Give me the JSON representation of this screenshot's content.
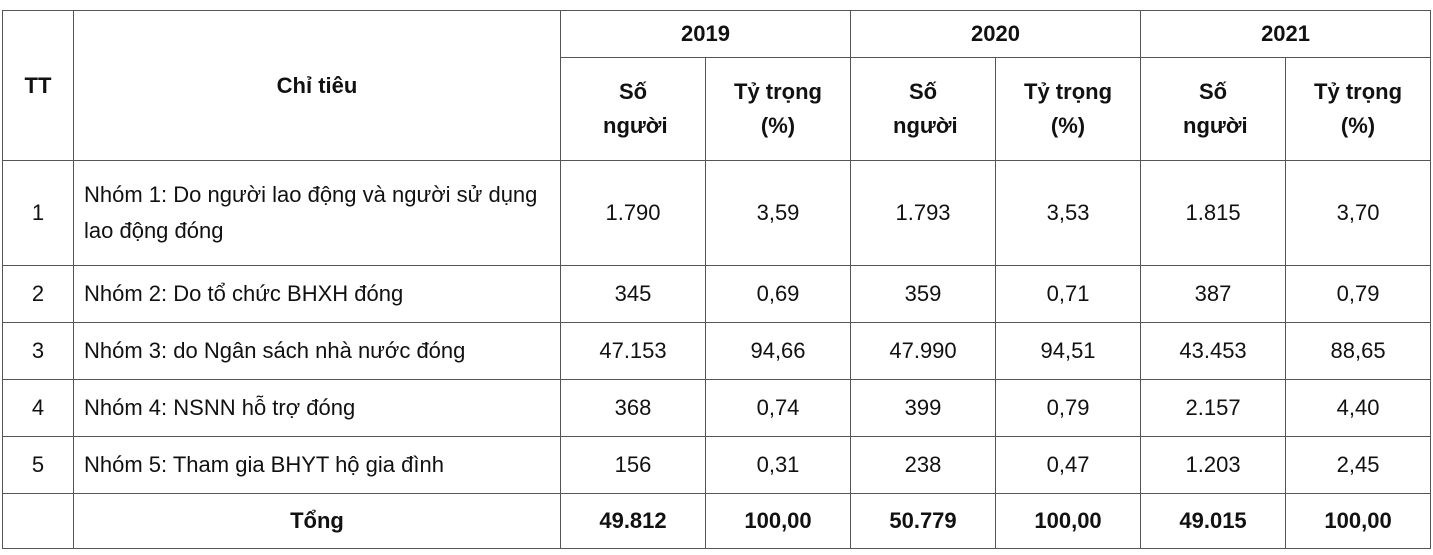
{
  "table": {
    "header": {
      "tt": "TT",
      "indicator": "Chỉ tiêu",
      "years": [
        {
          "year": "2019",
          "count": "Số người",
          "share": "Tỷ trọng (%)"
        },
        {
          "year": "2020",
          "count": "Số người",
          "share": "Tỷ trọng (%)"
        },
        {
          "year": "2021",
          "count": "Số người",
          "share": "Tỷ trọng (%)"
        }
      ]
    },
    "rows": [
      [
        "1",
        "Nhóm 1: Do người lao động và người sử dụng lao động đóng",
        "1.790",
        "3,59",
        "1.793",
        "3,53",
        "1.815",
        "3,70"
      ],
      [
        "2",
        "Nhóm 2: Do tổ chức BHXH đóng",
        "345",
        "0,69",
        "359",
        "0,71",
        "387",
        "0,79"
      ],
      [
        "3",
        "Nhóm 3: do Ngân sách nhà nước đóng",
        "47.153",
        "94,66",
        "47.990",
        "94,51",
        "43.453",
        "88,65"
      ],
      [
        "4",
        "Nhóm 4: NSNN hỗ trợ đóng",
        "368",
        "0,74",
        "399",
        "0,79",
        "2.157",
        "4,40"
      ],
      [
        "5",
        "Nhóm 5: Tham gia BHYT hộ gia đình",
        "156",
        "0,31",
        "238",
        "0,47",
        "1.203",
        "2,45"
      ]
    ],
    "total": {
      "label": "Tổng",
      "values": [
        "49.812",
        "100,00",
        "50.779",
        "100,00",
        "49.015",
        "100,00"
      ]
    }
  }
}
